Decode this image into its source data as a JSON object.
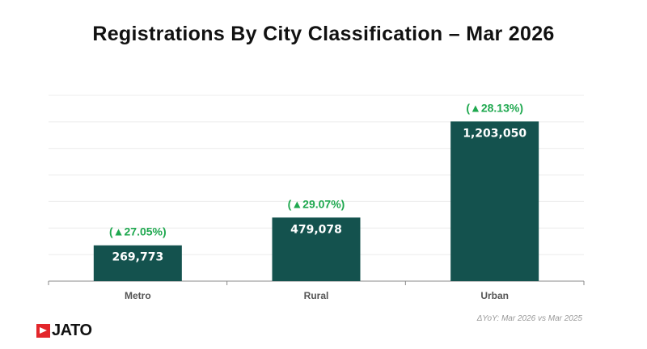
{
  "chart_data": {
    "type": "bar",
    "title": "Registrations By City Classification – Mar 2026",
    "categories": [
      "Metro",
      "Rural",
      "Urban"
    ],
    "values": [
      269773,
      479078,
      1203050
    ],
    "value_labels": [
      "269,773",
      "479,078",
      "1,203,050"
    ],
    "yoy_labels": [
      "(▲27.05%)",
      "(▲29.07%)",
      "(▲28.13%)"
    ],
    "ylim": [
      0,
      1400000
    ],
    "grid_step": 200000,
    "grid": true,
    "bar_color": "#14524e",
    "yoy_color": "#1fa84f",
    "note": "ΔYoY: Mar 2026 vs Mar 2025"
  },
  "logo": {
    "text": "JATO",
    "color": "#e3262b"
  }
}
